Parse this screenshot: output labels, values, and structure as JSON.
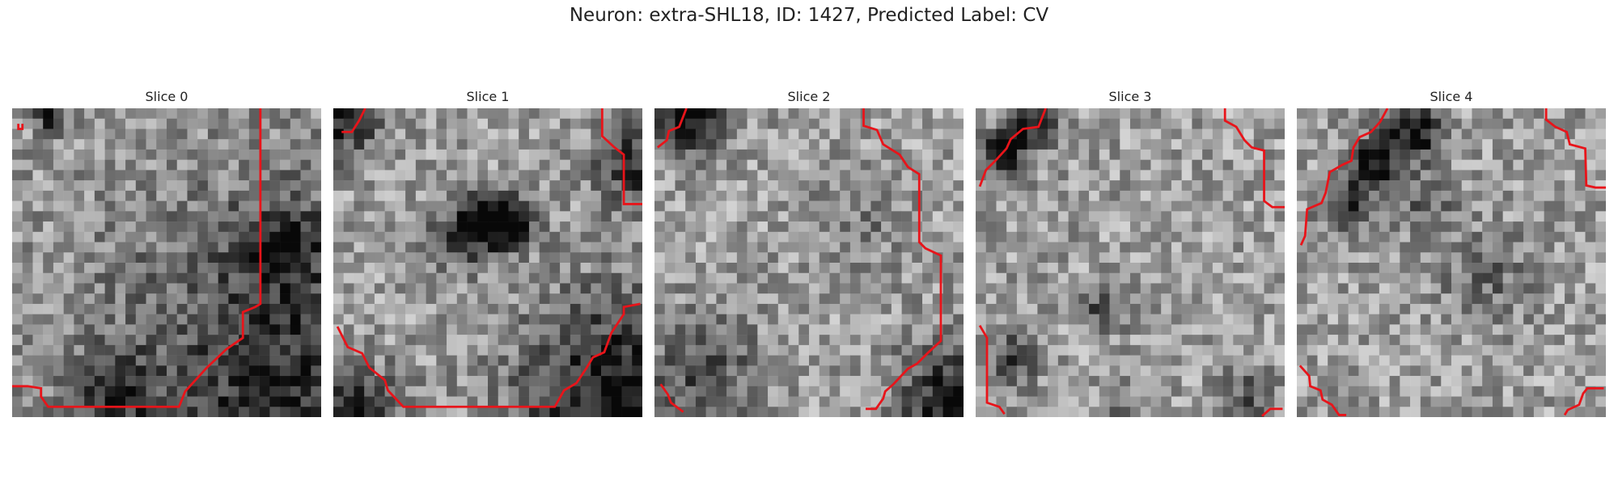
{
  "figure_title": "Neuron: extra-SHL18, ID: 1427, Predicted Label: CV",
  "colors": {
    "contour": "#e8141a",
    "background": "#ffffff"
  },
  "panels": [
    {
      "title": "Slice 0",
      "seed": 11,
      "dark": [
        [
          28,
          28,
          14,
          0.45
        ],
        [
          3,
          0,
          1.2,
          0.5
        ],
        [
          25,
          13,
          3,
          0.3
        ],
        [
          9,
          27,
          2.5,
          0.35
        ]
      ]
    },
    {
      "title": "Slice 1",
      "seed": 23,
      "dark": [
        [
          14.5,
          10,
          1.8,
          0.55
        ],
        [
          12,
          12,
          2.0,
          0.45
        ],
        [
          17,
          11,
          1.6,
          0.5
        ],
        [
          28,
          28,
          7,
          0.6
        ],
        [
          0,
          0,
          3,
          0.5
        ],
        [
          2,
          29,
          3,
          0.45
        ],
        [
          29,
          5,
          3,
          0.4
        ]
      ]
    },
    {
      "title": "Slice 2",
      "seed": 37,
      "dark": [
        [
          3,
          0,
          2.5,
          0.6
        ],
        [
          29,
          28,
          4,
          0.55
        ],
        [
          4,
          25,
          4,
          0.3
        ],
        [
          19,
          11,
          3,
          0.15
        ]
      ]
    },
    {
      "title": "Slice 3",
      "seed": 51,
      "dark": [
        [
          2,
          4,
          1.6,
          0.55
        ],
        [
          5,
          1,
          1.6,
          0.5
        ],
        [
          12,
          19,
          1.5,
          0.35
        ],
        [
          3,
          24,
          2,
          0.35
        ],
        [
          14,
          29,
          1.3,
          0.3
        ],
        [
          26,
          28,
          2,
          0.3
        ]
      ]
    },
    {
      "title": "Slice 4",
      "seed": 67,
      "dark": [
        [
          7,
          5,
          1.8,
          0.6
        ],
        [
          11,
          2,
          1.8,
          0.6
        ],
        [
          4,
          9,
          1.5,
          0.5
        ],
        [
          12,
          9,
          2,
          0.25
        ],
        [
          18,
          16,
          3,
          0.2
        ]
      ]
    }
  ]
}
